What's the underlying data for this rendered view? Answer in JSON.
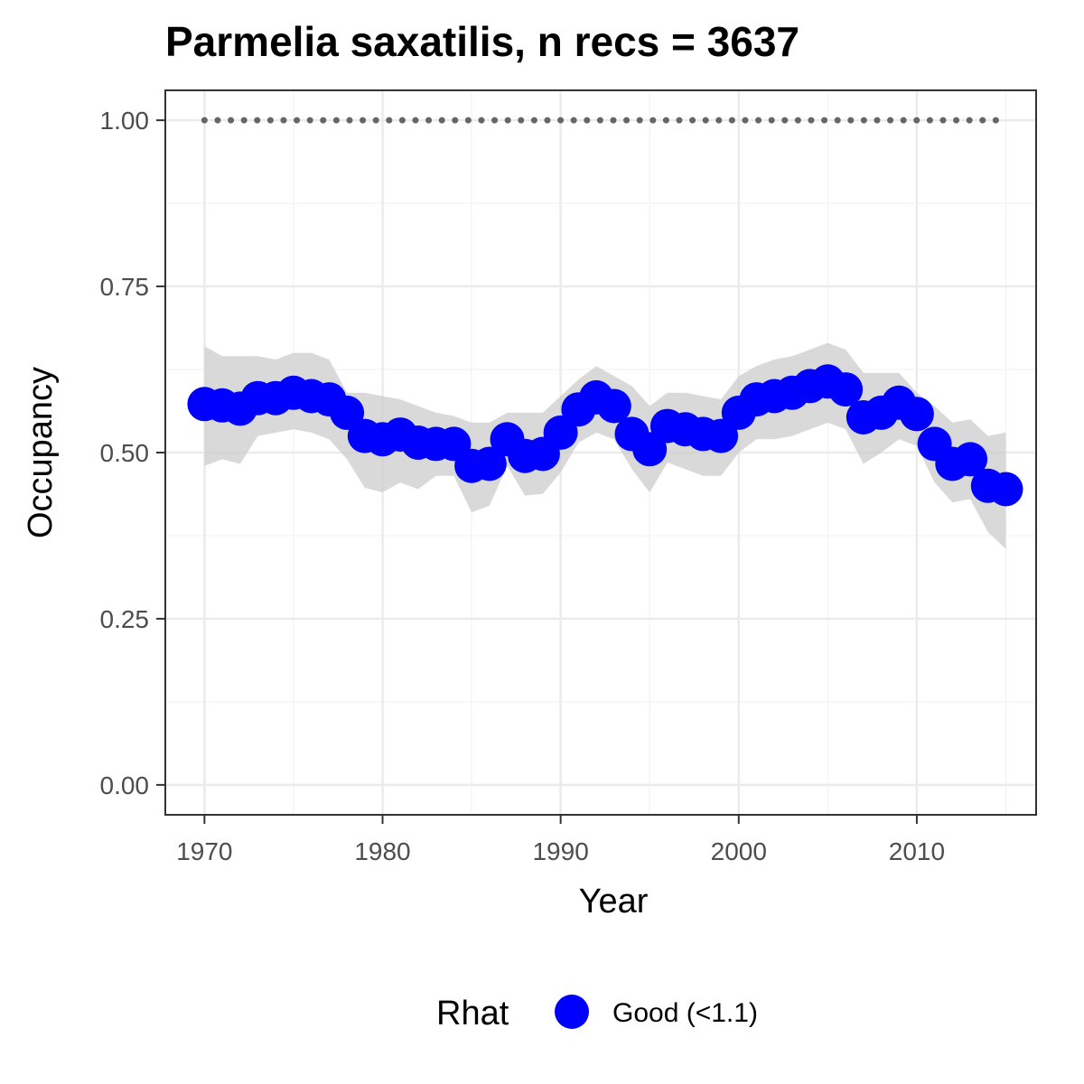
{
  "chart_data": {
    "type": "line",
    "title": "Parmelia saxatilis, n recs = 3637",
    "xlabel": "Year",
    "ylabel": "Occupancy",
    "xlim": [
      1967.8,
      1971.7
    ],
    "x_range": [
      1967.8,
      2016.7
    ],
    "ylim": [
      -0.045,
      1.045
    ],
    "x_ticks": [
      1970,
      1980,
      1990,
      2000,
      2010
    ],
    "x_tick_labels": [
      "1970",
      "1980",
      "1990",
      "2000",
      "2010"
    ],
    "y_ticks": [
      0,
      0.25,
      0.5,
      0.75,
      1.0
    ],
    "y_tick_labels": [
      "0.00",
      "0.25",
      "0.50",
      "0.75",
      "1.00"
    ],
    "x_minor_ticks": [
      1975,
      1985,
      1995,
      2005,
      2015
    ],
    "y_minor_ticks": [
      0.125,
      0.375,
      0.625,
      0.875
    ],
    "grid": true,
    "years": [
      1970,
      1971,
      1972,
      1973,
      1974,
      1975,
      1976,
      1977,
      1978,
      1979,
      1980,
      1981,
      1982,
      1983,
      1984,
      1985,
      1986,
      1987,
      1988,
      1989,
      1990,
      1991,
      1992,
      1993,
      1994,
      1995,
      1996,
      1997,
      1998,
      1999,
      2000,
      2001,
      2002,
      2003,
      2004,
      2005,
      2006,
      2007,
      2008,
      2009,
      2010,
      2011,
      2012,
      2013,
      2014,
      2015
    ],
    "occupancy": [
      0.573,
      0.571,
      0.566,
      0.582,
      0.582,
      0.59,
      0.585,
      0.58,
      0.56,
      0.525,
      0.52,
      0.527,
      0.515,
      0.513,
      0.513,
      0.48,
      0.483,
      0.52,
      0.495,
      0.498,
      0.53,
      0.565,
      0.583,
      0.57,
      0.528,
      0.505,
      0.54,
      0.535,
      0.528,
      0.525,
      0.56,
      0.58,
      0.585,
      0.59,
      0.6,
      0.607,
      0.595,
      0.553,
      0.56,
      0.575,
      0.558,
      0.513,
      0.483,
      0.49,
      0.45,
      0.445
    ],
    "ci_upper": [
      0.66,
      0.645,
      0.645,
      0.645,
      0.64,
      0.65,
      0.65,
      0.64,
      0.59,
      0.59,
      0.585,
      0.58,
      0.57,
      0.56,
      0.555,
      0.545,
      0.545,
      0.56,
      0.56,
      0.56,
      0.585,
      0.61,
      0.63,
      0.615,
      0.6,
      0.57,
      0.59,
      0.59,
      0.585,
      0.58,
      0.615,
      0.63,
      0.64,
      0.645,
      0.655,
      0.665,
      0.655,
      0.62,
      0.62,
      0.62,
      0.59,
      0.57,
      0.545,
      0.55,
      0.525,
      0.53
    ],
    "ci_lower": [
      0.48,
      0.49,
      0.483,
      0.525,
      0.53,
      0.535,
      0.53,
      0.52,
      0.49,
      0.447,
      0.44,
      0.455,
      0.445,
      0.465,
      0.465,
      0.41,
      0.42,
      0.48,
      0.435,
      0.438,
      0.47,
      0.515,
      0.53,
      0.52,
      0.475,
      0.44,
      0.485,
      0.475,
      0.465,
      0.465,
      0.5,
      0.52,
      0.52,
      0.525,
      0.535,
      0.545,
      0.535,
      0.483,
      0.5,
      0.52,
      0.51,
      0.455,
      0.425,
      0.43,
      0.38,
      0.355
    ],
    "reference_line": {
      "value": 1.0,
      "style": "dotted",
      "color": "#666666"
    },
    "colors": {
      "points": "#0000ff",
      "ribbon": "#d9d9d9",
      "panel_border": "#333333",
      "grid_major": "#ebebeb",
      "tick_text": "#4d4d4d"
    },
    "legend": {
      "title": "Rhat",
      "placement": "bottom",
      "entries": [
        {
          "label": "Good (<1.1)",
          "color": "#0000ff"
        }
      ]
    }
  }
}
